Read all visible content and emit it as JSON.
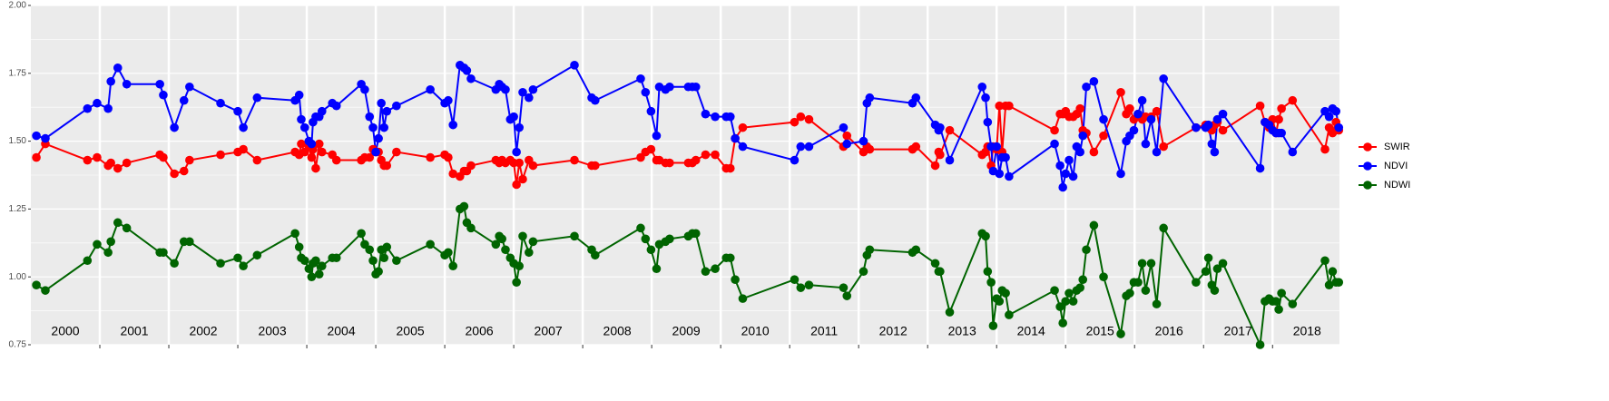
{
  "chart_data": {
    "type": "line",
    "x": [
      2000.08,
      2000.21,
      2000.82,
      2000.96,
      2001.12,
      2001.16,
      2001.26,
      2001.39,
      2001.87,
      2001.92,
      2002.08,
      2002.22,
      2002.3,
      2002.75,
      2003.0,
      2003.08,
      2003.28,
      2003.83,
      2003.89,
      2003.92,
      2003.97,
      2004.03,
      2004.07,
      2004.09,
      2004.13,
      2004.18,
      2004.22,
      2004.37,
      2004.43,
      2004.79,
      2004.84,
      2004.91,
      2004.96,
      2005.0,
      2005.04,
      2005.08,
      2005.12,
      2005.16,
      2005.3,
      2005.79,
      2006.0,
      2006.05,
      2006.12,
      2006.22,
      2006.28,
      2006.32,
      2006.38,
      2006.74,
      2006.79,
      2006.83,
      2006.88,
      2006.95,
      2007.0,
      2007.04,
      2007.08,
      2007.13,
      2007.22,
      2007.28,
      2007.88,
      2008.13,
      2008.18,
      2008.84,
      2008.91,
      2008.99,
      2009.07,
      2009.11,
      2009.2,
      2009.26,
      2009.53,
      2009.59,
      2009.64,
      2009.78,
      2009.92,
      2010.08,
      2010.14,
      2010.21,
      2010.32,
      2011.07,
      2011.16,
      2011.28,
      2011.78,
      2011.83,
      2012.07,
      2012.12,
      2012.16,
      2012.78,
      2012.83,
      2013.11,
      2013.16,
      2013.18,
      2013.32,
      2013.79,
      2013.84,
      2013.87,
      2013.92,
      2013.95,
      2014.0,
      2014.04,
      2014.08,
      2014.13,
      2014.18,
      2014.84,
      2014.92,
      2014.96,
      2015.0,
      2015.05,
      2015.11,
      2015.16,
      2015.21,
      2015.25,
      2015.3,
      2015.41,
      2015.55,
      2015.8,
      2015.88,
      2015.93,
      2015.99,
      2016.05,
      2016.11,
      2016.16,
      2016.24,
      2016.32,
      2016.42,
      2016.89,
      2017.03,
      2017.07,
      2017.12,
      2017.16,
      2017.2,
      2017.28,
      2017.82,
      2017.89,
      2017.95,
      2018.0,
      2018.05,
      2018.09,
      2018.13,
      2018.29,
      2018.76,
      2018.82,
      2018.87,
      2018.92,
      2018.96
    ],
    "series": [
      {
        "name": "SWIR",
        "color": "#ff0000",
        "values": [
          1.44,
          1.49,
          1.43,
          1.44,
          1.41,
          1.42,
          1.4,
          1.42,
          1.45,
          1.44,
          1.38,
          1.39,
          1.43,
          1.45,
          1.46,
          1.47,
          1.43,
          1.46,
          1.45,
          1.49,
          1.46,
          1.48,
          1.44,
          1.47,
          1.4,
          1.49,
          1.46,
          1.45,
          1.43,
          1.43,
          1.44,
          1.44,
          1.47,
          1.46,
          1.46,
          1.43,
          1.41,
          1.41,
          1.46,
          1.44,
          1.45,
          1.44,
          1.38,
          1.37,
          1.39,
          1.39,
          1.41,
          1.43,
          1.42,
          1.43,
          1.42,
          1.43,
          1.42,
          1.34,
          1.42,
          1.36,
          1.43,
          1.41,
          1.43,
          1.41,
          1.41,
          1.44,
          1.46,
          1.47,
          1.43,
          1.43,
          1.42,
          1.42,
          1.42,
          1.42,
          1.43,
          1.45,
          1.45,
          1.4,
          1.4,
          1.51,
          1.55,
          1.57,
          1.59,
          1.58,
          1.48,
          1.52,
          1.46,
          1.48,
          1.47,
          1.47,
          1.48,
          1.41,
          1.46,
          1.45,
          1.54,
          1.45,
          1.46,
          1.48,
          1.41,
          1.48,
          1.47,
          1.63,
          1.46,
          1.63,
          1.63,
          1.54,
          1.6,
          1.6,
          1.61,
          1.59,
          1.59,
          1.6,
          1.62,
          1.54,
          1.53,
          1.46,
          1.52,
          1.68,
          1.6,
          1.62,
          1.58,
          1.6,
          1.58,
          1.59,
          1.59,
          1.61,
          1.48,
          1.55,
          1.56,
          1.55,
          1.54,
          1.56,
          1.57,
          1.54,
          1.63,
          1.57,
          1.55,
          1.58,
          1.53,
          1.58,
          1.62,
          1.65,
          1.47,
          1.55,
          1.53,
          1.57,
          1.54
        ]
      },
      {
        "name": "NDVI",
        "color": "#0000ff",
        "values": [
          1.52,
          1.51,
          1.62,
          1.64,
          1.62,
          1.72,
          1.77,
          1.71,
          1.71,
          1.67,
          1.55,
          1.65,
          1.7,
          1.64,
          1.61,
          1.55,
          1.66,
          1.65,
          1.67,
          1.58,
          1.55,
          1.5,
          1.49,
          1.57,
          1.59,
          1.59,
          1.61,
          1.64,
          1.63,
          1.71,
          1.69,
          1.59,
          1.55,
          1.46,
          1.51,
          1.64,
          1.55,
          1.61,
          1.63,
          1.69,
          1.64,
          1.65,
          1.56,
          1.78,
          1.77,
          1.76,
          1.73,
          1.69,
          1.71,
          1.7,
          1.69,
          1.58,
          1.59,
          1.46,
          1.55,
          1.68,
          1.66,
          1.69,
          1.78,
          1.66,
          1.65,
          1.73,
          1.68,
          1.61,
          1.52,
          1.7,
          1.69,
          1.7,
          1.7,
          1.7,
          1.7,
          1.6,
          1.59,
          1.59,
          1.59,
          1.51,
          1.48,
          1.43,
          1.48,
          1.48,
          1.55,
          1.49,
          1.5,
          1.64,
          1.66,
          1.64,
          1.66,
          1.56,
          1.54,
          1.55,
          1.43,
          1.7,
          1.66,
          1.57,
          1.48,
          1.39,
          1.48,
          1.38,
          1.44,
          1.44,
          1.37,
          1.49,
          1.41,
          1.33,
          1.38,
          1.43,
          1.37,
          1.48,
          1.46,
          1.52,
          1.7,
          1.72,
          1.58,
          1.38,
          1.5,
          1.52,
          1.54,
          1.6,
          1.65,
          1.49,
          1.58,
          1.46,
          1.73,
          1.55,
          1.55,
          1.56,
          1.49,
          1.46,
          1.58,
          1.6,
          1.4,
          1.57,
          1.56,
          1.54,
          1.53,
          1.53,
          1.53,
          1.46,
          1.61,
          1.59,
          1.62,
          1.61,
          1.55
        ]
      },
      {
        "name": "NDWI",
        "color": "#006400",
        "values": [
          0.97,
          0.95,
          1.06,
          1.12,
          1.09,
          1.13,
          1.2,
          1.18,
          1.09,
          1.09,
          1.05,
          1.13,
          1.13,
          1.05,
          1.07,
          1.04,
          1.08,
          1.16,
          1.11,
          1.07,
          1.06,
          1.03,
          1.0,
          1.05,
          1.06,
          1.01,
          1.04,
          1.07,
          1.07,
          1.16,
          1.12,
          1.1,
          1.06,
          1.01,
          1.02,
          1.1,
          1.07,
          1.11,
          1.06,
          1.12,
          1.08,
          1.09,
          1.04,
          1.25,
          1.26,
          1.2,
          1.18,
          1.12,
          1.15,
          1.14,
          1.1,
          1.07,
          1.05,
          0.98,
          1.04,
          1.15,
          1.09,
          1.13,
          1.15,
          1.1,
          1.08,
          1.18,
          1.14,
          1.1,
          1.03,
          1.12,
          1.13,
          1.14,
          1.15,
          1.16,
          1.16,
          1.02,
          1.03,
          1.07,
          1.07,
          0.99,
          0.92,
          0.99,
          0.96,
          0.97,
          0.96,
          0.93,
          1.02,
          1.08,
          1.1,
          1.09,
          1.1,
          1.05,
          1.02,
          1.02,
          0.87,
          1.16,
          1.15,
          1.02,
          0.98,
          0.82,
          0.92,
          0.91,
          0.95,
          0.94,
          0.86,
          0.95,
          0.89,
          0.83,
          0.91,
          0.94,
          0.91,
          0.95,
          0.96,
          0.99,
          1.1,
          1.19,
          1.0,
          0.79,
          0.93,
          0.94,
          0.98,
          0.98,
          1.05,
          0.95,
          1.05,
          0.9,
          1.18,
          0.98,
          1.02,
          1.07,
          0.97,
          0.95,
          1.03,
          1.05,
          0.75,
          0.91,
          0.92,
          0.91,
          0.91,
          0.88,
          0.94,
          0.9,
          1.06,
          0.97,
          1.02,
          0.98,
          0.98
        ]
      }
    ],
    "xlim": [
      2000,
      2018.97
    ],
    "ylim": [
      0.75,
      2
    ],
    "yticks": [
      0.75,
      {
        "value": 1,
        "label": "1.00"
      },
      1.25,
      {
        "value": 1.5,
        "label": "1.50"
      },
      1.75,
      {
        "value": 2,
        "label": "2.00"
      }
    ],
    "vlines": [
      2001,
      2002,
      2003,
      2004,
      2005,
      2006,
      2007,
      2008,
      2009,
      2010,
      2011,
      2012,
      2013,
      2014,
      2015,
      2016,
      2017,
      2018
    ],
    "year_labels": [
      {
        "value": 2000.5,
        "label": "2000"
      },
      {
        "value": 2001.5,
        "label": "2001"
      },
      {
        "value": 2002.5,
        "label": "2002"
      },
      {
        "value": 2003.5,
        "label": "2003"
      },
      {
        "value": 2004.5,
        "label": "2004"
      },
      {
        "value": 2005.5,
        "label": "2005"
      },
      {
        "value": 2006.5,
        "label": "2006"
      },
      {
        "value": 2007.5,
        "label": "2007"
      },
      {
        "value": 2008.5,
        "label": "2008"
      },
      {
        "value": 2009.5,
        "label": "2009"
      },
      {
        "value": 2010.5,
        "label": "2010"
      },
      {
        "value": 2011.5,
        "label": "2011"
      },
      {
        "value": 2012.5,
        "label": "2012"
      },
      {
        "value": 2013.5,
        "label": "2013"
      },
      {
        "value": 2014.5,
        "label": "2014"
      },
      {
        "value": 2015.5,
        "label": "2015"
      },
      {
        "value": 2016.5,
        "label": "2016"
      },
      {
        "value": 2017.5,
        "label": "2017"
      },
      {
        "value": 2018.5,
        "label": "2018"
      }
    ],
    "grid": true,
    "legend": "right"
  }
}
